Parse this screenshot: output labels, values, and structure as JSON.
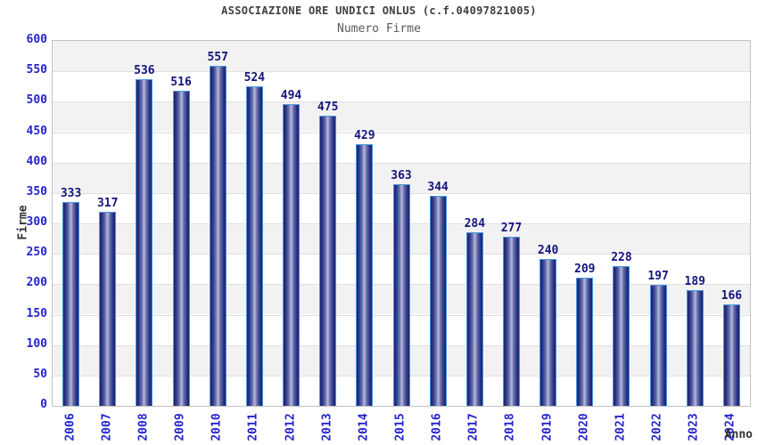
{
  "header": {
    "title": "ASSOCIAZIONE ORE UNDICI ONLUS (c.f.04097821005)",
    "subtitle": "Numero Firme"
  },
  "chart_data": {
    "type": "bar",
    "title": "ASSOCIAZIONE ORE UNDICI ONLUS (c.f.04097821005)",
    "subtitle": "Numero Firme",
    "xlabel": "Anno",
    "ylabel": "Firme",
    "categories": [
      "2006",
      "2007",
      "2008",
      "2009",
      "2010",
      "2011",
      "2012",
      "2013",
      "2014",
      "2015",
      "2016",
      "2017",
      "2018",
      "2019",
      "2020",
      "2021",
      "2022",
      "2023",
      "2024"
    ],
    "values": [
      333,
      317,
      536,
      516,
      557,
      524,
      494,
      475,
      429,
      363,
      344,
      284,
      277,
      240,
      209,
      228,
      197,
      189,
      166
    ],
    "ylim": [
      0,
      600
    ],
    "ytick_step": 50,
    "grid": true,
    "legend_position": "none",
    "colors": {
      "title": "#3f3f3f",
      "subtitle": "#5a5a5a",
      "axis_title": "#333333",
      "tick_label": "#2424cc",
      "value_label": "#14147e",
      "bar_border": "#4798e0",
      "bar_edge": "#1a2070",
      "bar_mid": "#2e3787",
      "bar_light": "#6971ad",
      "bar_highlight": "#b7bcdd",
      "band_even": "#f2f2f2",
      "band_odd": "#ffffff",
      "gridline": "#e0e0e0",
      "plot_border": "#c2c2c2"
    }
  }
}
